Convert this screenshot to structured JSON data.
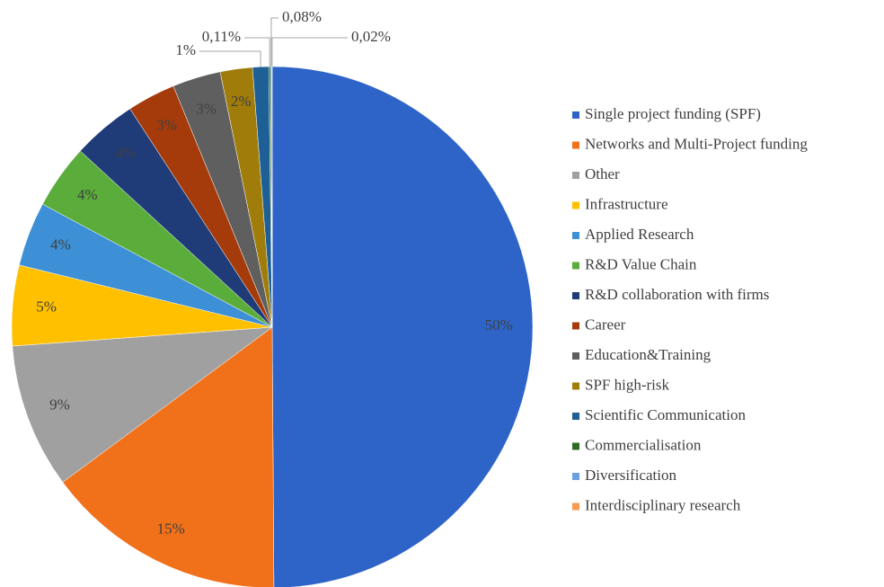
{
  "chart_data": {
    "type": "pie",
    "categories": [
      "Single project funding (SPF)",
      "Networks and Multi-Project funding",
      "Other",
      "Infrastructure",
      "Applied Research",
      "R&D Value Chain",
      "R&D collaboration with firms",
      "Career",
      "Education&Training",
      "SPF high-risk",
      "Scientific Communication",
      "Commercialisation",
      "Diversification",
      "Interdisciplinary research"
    ],
    "values": [
      50,
      15,
      9,
      5,
      4,
      4,
      4,
      3,
      3,
      2,
      1,
      0.11,
      0.08,
      0.02
    ],
    "value_labels": [
      "50%",
      "15%",
      "9%",
      "5%",
      "4%",
      "4%",
      "4%",
      "3%",
      "3%",
      "2%",
      "1%",
      "0,11%",
      "0,08%",
      "0,02%"
    ],
    "colors": [
      "#2e64c8",
      "#f0711a",
      "#a0a0a0",
      "#ffc000",
      "#3d8fd6",
      "#5aad3a",
      "#1f3b78",
      "#a53a0a",
      "#5f5f5f",
      "#a07c0a",
      "#1e5f96",
      "#2f6b25",
      "#6d9fe0",
      "#f59a50"
    ],
    "legend": "right"
  }
}
